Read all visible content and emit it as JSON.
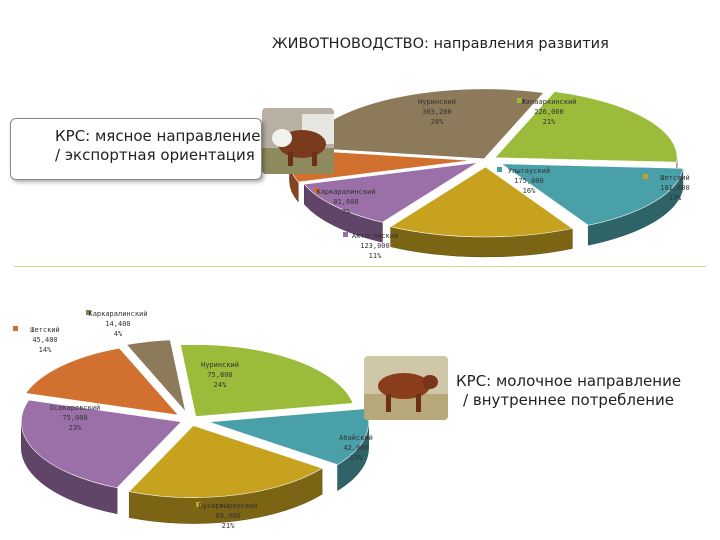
{
  "header": {
    "title": "ЖИВОТНОВОДСТВО: направления развития"
  },
  "callouts": [
    {
      "line1": "КРС: мясное направление",
      "line2": "/ экспортная ориентация"
    },
    {
      "line1": "КРС: молочное направление",
      "line2": "/ внутреннее потребление"
    }
  ],
  "chart_data": [
    {
      "type": "pie",
      "title": "",
      "slices": [
        {
          "label": "Нуринский",
          "value_text": "303,200",
          "pct_text": "28%",
          "value": 303200,
          "color": "#8c7a5a"
        },
        {
          "label": "Жанааркинский",
          "value_text": "226,000",
          "pct_text": "21%",
          "value": 226000,
          "color": "#9bbb3a"
        },
        {
          "label": "Улытауский",
          "value_text": "175,000",
          "pct_text": "16%",
          "value": 175000,
          "color": "#4aa0a8"
        },
        {
          "label": "Шетский",
          "value_text": "181,600",
          "pct_text": "17%",
          "value": 181600,
          "color": "#c6a21f"
        },
        {
          "label": "Актогайский",
          "value_text": "123,000",
          "pct_text": "11%",
          "value": 123000,
          "color": "#9b6fa8"
        },
        {
          "label": "Каркаралинский",
          "value_text": "81,600",
          "pct_text": "7%",
          "value": 81600,
          "color": "#d2702f"
        }
      ]
    },
    {
      "type": "pie",
      "title": "",
      "slices": [
        {
          "label": "Каркаралинский",
          "value_text": "14,400",
          "pct_text": "4%",
          "value": 14400,
          "color": "#8c7a5a"
        },
        {
          "label": "Нуринский",
          "value_text": "75,800",
          "pct_text": "24%",
          "value": 75800,
          "color": "#9bbb3a"
        },
        {
          "label": "Абайский",
          "value_text": "42,000",
          "pct_text": "13%",
          "value": 42000,
          "color": "#4aa0a8"
        },
        {
          "label": "Бухаржырауский",
          "value_text": "69,000",
          "pct_text": "21%",
          "value": 69000,
          "color": "#c6a21f"
        },
        {
          "label": "Осакаровский",
          "value_text": "75,000",
          "pct_text": "23%",
          "value": 75000,
          "color": "#9b6fa8"
        },
        {
          "label": "Шетский",
          "value_text": "45,400",
          "pct_text": "14%",
          "value": 45400,
          "color": "#d2702f"
        }
      ]
    }
  ]
}
